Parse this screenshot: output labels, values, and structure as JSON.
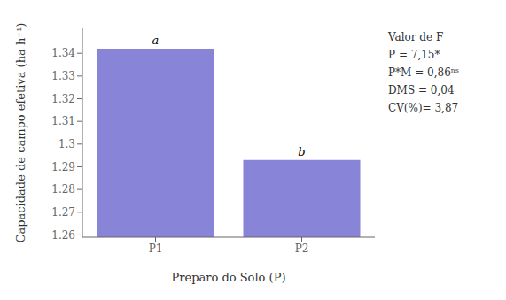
{
  "chart_data": {
    "type": "bar",
    "categories": [
      "P1",
      "P2"
    ],
    "values": [
      1.342,
      1.293
    ],
    "value_labels": [
      "a",
      "b"
    ],
    "xlabel": "Preparo do Solo (P)",
    "ylabel": "Capacidade de campo efetiva (ha h⁻¹)",
    "ylim": [
      1.259,
      1.351
    ],
    "yticks": [
      1.26,
      1.27,
      1.28,
      1.29,
      1.3,
      1.31,
      1.32,
      1.33,
      1.34
    ],
    "annotations": [
      "Valor de F",
      "P = 7,15*",
      "P*M = 0,86ⁿˢ",
      "DMS = 0,04",
      "CV(%)= 3,87"
    ],
    "grid": false
  }
}
